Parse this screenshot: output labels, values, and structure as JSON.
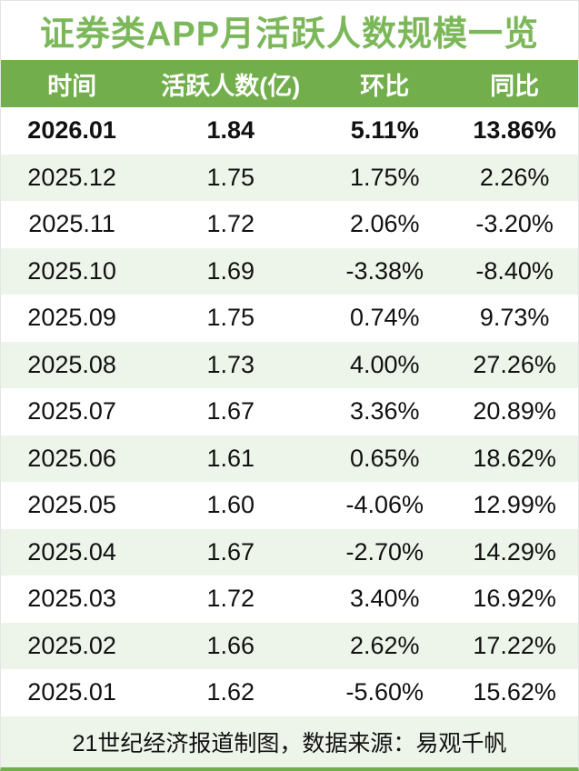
{
  "title": "证券类APP月活跃人数规模一览",
  "table": {
    "headers": [
      "时间",
      "活跃人数(亿)",
      "环比",
      "同比"
    ],
    "rows": [
      {
        "time": "2026.01",
        "active": "1.84",
        "mom": "5.11%",
        "yoy": "13.86%",
        "emphasis": true
      },
      {
        "time": "2025.12",
        "active": "1.75",
        "mom": "1.75%",
        "yoy": "2.26%",
        "emphasis": false
      },
      {
        "time": "2025.11",
        "active": "1.72",
        "mom": "2.06%",
        "yoy": "-3.20%",
        "emphasis": false
      },
      {
        "time": "2025.10",
        "active": "1.69",
        "mom": "-3.38%",
        "yoy": "-8.40%",
        "emphasis": false
      },
      {
        "time": "2025.09",
        "active": "1.75",
        "mom": "0.74%",
        "yoy": "9.73%",
        "emphasis": false
      },
      {
        "time": "2025.08",
        "active": "1.73",
        "mom": "4.00%",
        "yoy": "27.26%",
        "emphasis": false
      },
      {
        "time": "2025.07",
        "active": "1.67",
        "mom": "3.36%",
        "yoy": "20.89%",
        "emphasis": false
      },
      {
        "time": "2025.06",
        "active": "1.61",
        "mom": "0.65%",
        "yoy": "18.62%",
        "emphasis": false
      },
      {
        "time": "2025.05",
        "active": "1.60",
        "mom": "-4.06%",
        "yoy": "12.99%",
        "emphasis": false
      },
      {
        "time": "2025.04",
        "active": "1.67",
        "mom": "-2.70%",
        "yoy": "14.29%",
        "emphasis": false
      },
      {
        "time": "2025.03",
        "active": "1.72",
        "mom": "3.40%",
        "yoy": "16.92%",
        "emphasis": false
      },
      {
        "time": "2025.02",
        "active": "1.66",
        "mom": "2.62%",
        "yoy": "17.22%",
        "emphasis": false
      },
      {
        "time": "2025.01",
        "active": "1.62",
        "mom": "-5.60%",
        "yoy": "15.62%",
        "emphasis": false
      }
    ]
  },
  "footer_note": "21世纪经济报道制图，数据来源：易观千帆",
  "colors": {
    "accent_green": "#72ae4c",
    "title_green": "#7cb85a",
    "stripe_light_green": "#edf5ea",
    "header_text": "#ffffff",
    "body_text": "#111111"
  },
  "chart_data": {
    "type": "table",
    "title": "证券类APP月活跃人数规模一览",
    "columns": [
      "时间",
      "活跃人数(亿)",
      "环比",
      "同比"
    ],
    "rows": [
      [
        "2026.01",
        1.84,
        "5.11%",
        "13.86%"
      ],
      [
        "2025.12",
        1.75,
        "1.75%",
        "2.26%"
      ],
      [
        "2025.11",
        1.72,
        "2.06%",
        "-3.20%"
      ],
      [
        "2025.10",
        1.69,
        "-3.38%",
        "-8.40%"
      ],
      [
        "2025.09",
        1.75,
        "0.74%",
        "9.73%"
      ],
      [
        "2025.08",
        1.73,
        "4.00%",
        "27.26%"
      ],
      [
        "2025.07",
        1.67,
        "3.36%",
        "20.89%"
      ],
      [
        "2025.06",
        1.61,
        "0.65%",
        "18.62%"
      ],
      [
        "2025.05",
        1.6,
        "-4.06%",
        "12.99%"
      ],
      [
        "2025.04",
        1.67,
        "-2.70%",
        "14.29%"
      ],
      [
        "2025.03",
        1.72,
        "3.40%",
        "16.92%"
      ],
      [
        "2025.02",
        1.66,
        "2.62%",
        "17.22%"
      ],
      [
        "2025.01",
        1.62,
        "-5.60%",
        "15.62%"
      ]
    ],
    "source_note": "21世纪经济报道制图，数据来源：易观千帆"
  }
}
